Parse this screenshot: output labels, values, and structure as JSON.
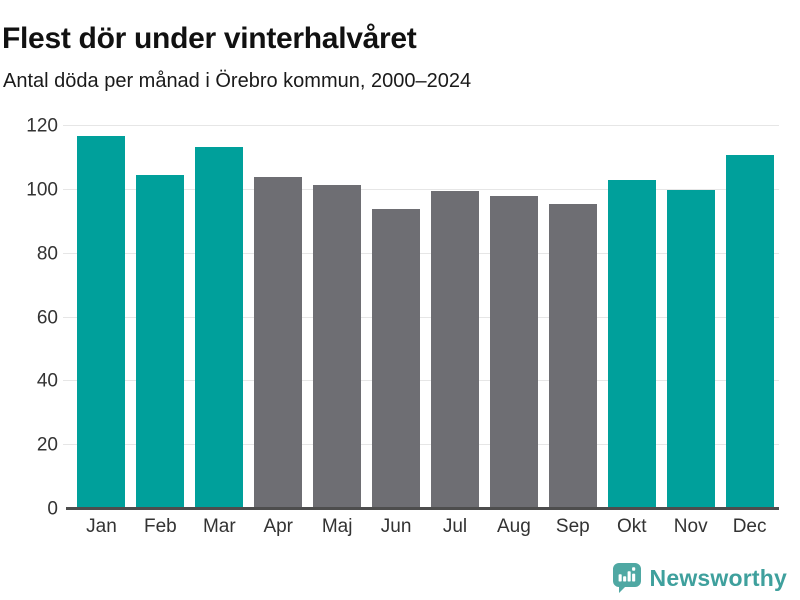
{
  "chart_data": {
    "type": "bar",
    "title": "Flest dör under vinterhalvåret",
    "subtitle": "Antal döda per månad i Örebro kommun, 2000–2024",
    "categories": [
      "Jan",
      "Feb",
      "Mar",
      "Apr",
      "Maj",
      "Jun",
      "Jul",
      "Aug",
      "Sep",
      "Okt",
      "Nov",
      "Dec"
    ],
    "values": [
      117,
      104.5,
      113.5,
      104,
      101.5,
      94,
      99.5,
      98,
      95.5,
      103,
      100,
      111
    ],
    "bar_colors": [
      "#00A09B",
      "#00A09B",
      "#00A09B",
      "#6E6E73",
      "#6E6E73",
      "#6E6E73",
      "#6E6E73",
      "#6E6E73",
      "#6E6E73",
      "#00A09B",
      "#00A09B",
      "#00A09B"
    ],
    "highlighted_months": [
      "Jan",
      "Feb",
      "Mar",
      "Okt",
      "Nov",
      "Dec"
    ],
    "xlabel": "",
    "ylabel": "",
    "ylim": [
      0,
      120
    ],
    "yticks": [
      0,
      20,
      40,
      60,
      80,
      100,
      120
    ],
    "grid": true,
    "legend_position": "none"
  },
  "colors": {
    "highlight": "#00A09B",
    "muted": "#6E6E73",
    "gridline": "#E6E6E6",
    "axis_line": "#4D4D4D",
    "tick_text": "#333333"
  },
  "footer": {
    "brand": "Newsworthy",
    "logo_color": "#4FA8A3",
    "wordmark_color": "#3FA09D",
    "logo_icon": "bar-chart-speech-bubble-icon"
  }
}
